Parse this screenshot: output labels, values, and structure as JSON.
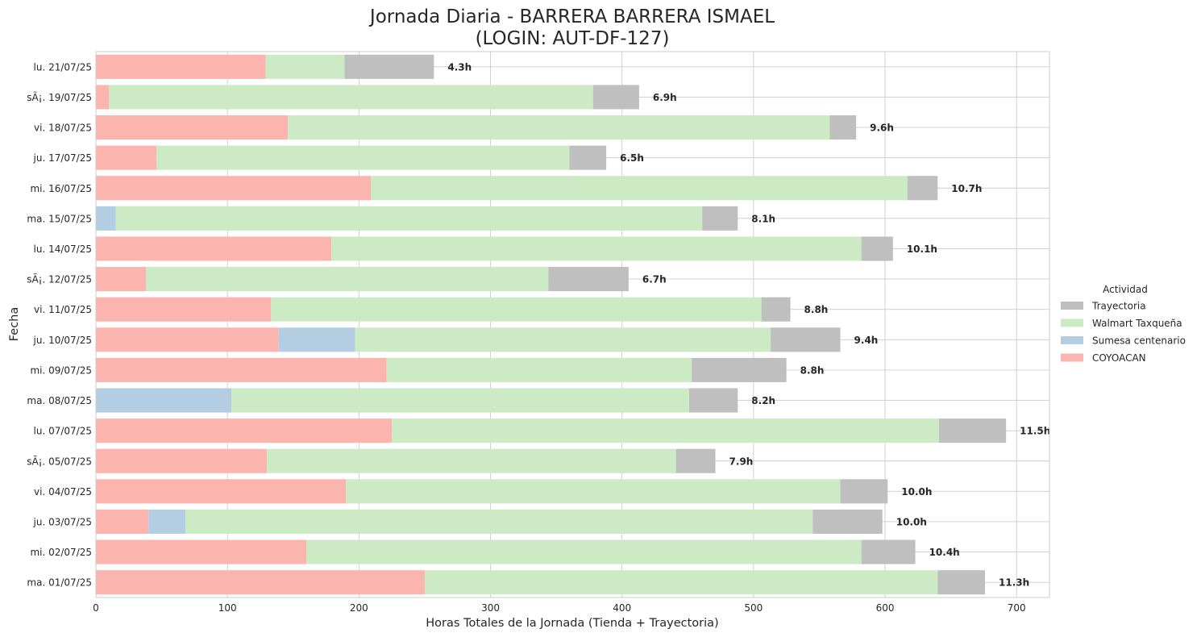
{
  "chart_data": {
    "type": "bar",
    "orientation": "horizontal",
    "stacked": true,
    "title_line1": "Jornada Diaria - BARRERA BARRERA ISMAEL",
    "title_line2": "(LOGIN: AUT-DF-127)",
    "xlabel": "Horas Totales de la Jornada (Tienda + Trayectoria)",
    "ylabel": "Fecha",
    "xlim": [
      0,
      725
    ],
    "xticks": [
      0,
      100,
      200,
      300,
      400,
      500,
      600,
      700
    ],
    "grid": true,
    "legend": {
      "title": "Actividad",
      "placement": "center-right outside",
      "entries": [
        "Trayectoria",
        "Walmart Taxqueña",
        "Sumesa centenario",
        "COYOACAN"
      ]
    },
    "categories": [
      "lu. 21/07/25",
      "sÃ¡. 19/07/25",
      "vi. 18/07/25",
      "ju. 17/07/25",
      "mi. 16/07/25",
      "ma. 15/07/25",
      "lu. 14/07/25",
      "sÃ¡. 12/07/25",
      "vi. 11/07/25",
      "ju. 10/07/25",
      "mi. 09/07/25",
      "ma. 08/07/25",
      "lu. 07/07/25",
      "sÃ¡. 05/07/25",
      "vi. 04/07/25",
      "ju. 03/07/25",
      "mi. 02/07/25",
      "ma. 01/07/25"
    ],
    "series": [
      {
        "name": "COYOACAN",
        "color": "#fbb4ae",
        "values": [
          129,
          10,
          146,
          46,
          209,
          0,
          179,
          38,
          133,
          139,
          221,
          0,
          225,
          130,
          190,
          40,
          160,
          250
        ]
      },
      {
        "name": "Sumesa centenario",
        "color": "#b3cde3",
        "values": [
          0,
          0,
          0,
          0,
          0,
          15,
          0,
          0,
          0,
          58,
          0,
          103,
          0,
          0,
          0,
          28,
          0,
          0
        ]
      },
      {
        "name": "Walmart Taxqueña",
        "color": "#ccebc5",
        "values": [
          60,
          368,
          412,
          314,
          408,
          446,
          403,
          306,
          373,
          316,
          232,
          348,
          416,
          311,
          376,
          477,
          422,
          390
        ]
      },
      {
        "name": "Trayectoria",
        "color": "#bfbfbf",
        "values": [
          68,
          35,
          20,
          28,
          23,
          27,
          24,
          61,
          22,
          53,
          72,
          37,
          51,
          30,
          36,
          53,
          41,
          36
        ]
      }
    ],
    "total_labels": [
      "4.3h",
      "6.9h",
      "9.6h",
      "6.5h",
      "10.7h",
      "8.1h",
      "10.1h",
      "6.7h",
      "8.8h",
      "9.4h",
      "8.8h",
      "8.2h",
      "11.5h",
      "7.9h",
      "10.0h",
      "10.0h",
      "10.4h",
      "11.3h"
    ]
  }
}
